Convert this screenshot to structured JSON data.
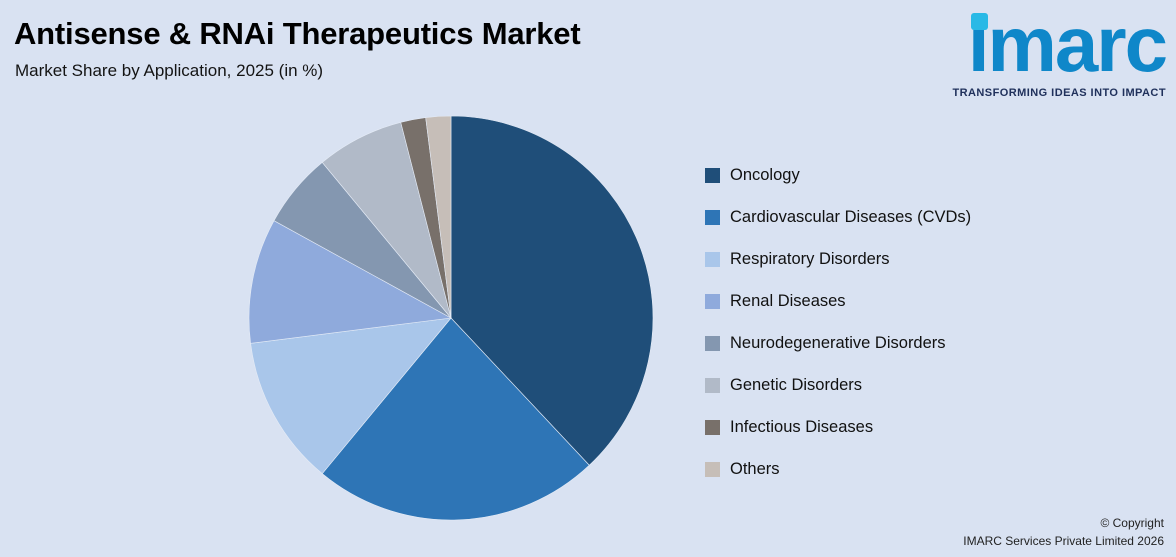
{
  "header": {
    "title": "Antisense & RNAi Therapeutics Market",
    "subtitle": "Market Share by Application, 2025 (in %)"
  },
  "logo": {
    "text": "imarc",
    "tagline": "TRANSFORMING IDEAS INTO IMPACT"
  },
  "footer": {
    "copyright_line1": "© Copyright",
    "copyright_line2": "IMARC Services Private Limited 2026"
  },
  "colors": {
    "background": "#d9e2f2",
    "logo_blue": "#0f87c9",
    "logo_dot_cyan": "#29b9e6",
    "tagline_navy": "#20315c"
  },
  "chart_data": {
    "type": "pie",
    "title": "Antisense & RNAi Therapeutics Market",
    "subtitle": "Market Share by Application, 2025 (in %)",
    "unit": "%",
    "start_angle_deg": 0,
    "direction": "clockwise",
    "legend_position": "right",
    "segments": [
      {
        "label": "Oncology",
        "value": 38,
        "color": "#1f4e79"
      },
      {
        "label": "Cardiovascular Diseases (CVDs)",
        "value": 23,
        "color": "#2e75b6"
      },
      {
        "label": "Respiratory Disorders",
        "value": 12,
        "color": "#a9c6ea"
      },
      {
        "label": "Renal Diseases",
        "value": 10,
        "color": "#8faadc"
      },
      {
        "label": "Neurodegenerative Disorders",
        "value": 6,
        "color": "#8497b0"
      },
      {
        "label": "Genetic Disorders",
        "value": 7,
        "color": "#b1bac8"
      },
      {
        "label": "Infectious Diseases",
        "value": 2,
        "color": "#78706a"
      },
      {
        "label": "Others",
        "value": 2,
        "color": "#c6beb8"
      }
    ]
  }
}
